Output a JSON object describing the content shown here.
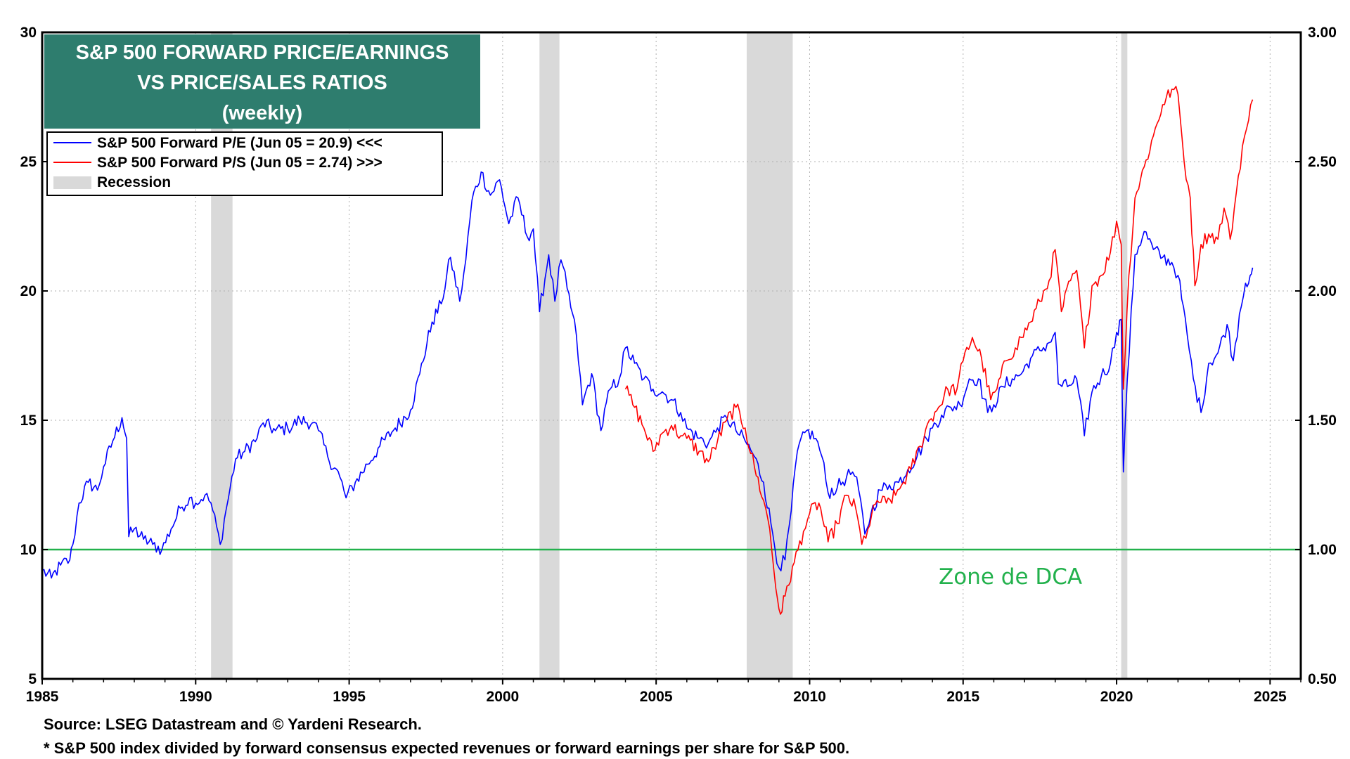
{
  "chart_data": {
    "type": "line",
    "title_lines": [
      "S&P 500 FORWARD PRICE/EARNINGS",
      "VS PRICE/SALES RATIOS",
      "(weekly)"
    ],
    "x_ticks": [
      1985,
      1990,
      1995,
      2000,
      2005,
      2010,
      2015,
      2020,
      2025
    ],
    "xlim": [
      1985,
      2026
    ],
    "y_left": {
      "ticks": [
        5,
        10,
        15,
        20,
        25,
        30
      ],
      "labels": [
        "5",
        "10",
        "15",
        "20",
        "25",
        "30"
      ],
      "ylim": [
        5,
        30
      ]
    },
    "y_right": {
      "ticks": [
        0.5,
        1.0,
        1.5,
        2.0,
        2.5,
        3.0
      ],
      "labels": [
        "0.50",
        "1.00",
        "1.50",
        "2.00",
        "2.50",
        "3.00"
      ],
      "ylim": [
        0.5,
        3.0
      ]
    },
    "grid": true,
    "legend": [
      {
        "label": "S&P 500 Forward P/E (Jun 05 = 20.9) <<<",
        "color": "#0000ff",
        "kind": "line"
      },
      {
        "label": "S&P 500 Forward P/S (Jun 05 = 2.74) >>>",
        "color": "#ff0000",
        "kind": "line"
      },
      {
        "label": "Recession",
        "color": "#d9d9d9",
        "kind": "box"
      }
    ],
    "recessions": [
      [
        1990.5,
        1991.2
      ],
      [
        2001.2,
        2001.85
      ],
      [
        2007.95,
        2009.45
      ],
      [
        2020.15,
        2020.35
      ]
    ],
    "reference_line": {
      "value": 10,
      "color": "#22b14c",
      "label": "Zone de DCA"
    },
    "series": [
      {
        "name": "S&P 500 Forward P/E",
        "axis": "left",
        "color": "#0000ff",
        "points": [
          [
            1985.0,
            9.2
          ],
          [
            1985.3,
            8.9
          ],
          [
            1985.6,
            9.4
          ],
          [
            1985.9,
            9.6
          ],
          [
            1986.0,
            10.2
          ],
          [
            1986.2,
            11.8
          ],
          [
            1986.5,
            12.6
          ],
          [
            1986.8,
            12.3
          ],
          [
            1987.0,
            13.2
          ],
          [
            1987.3,
            14.2
          ],
          [
            1987.6,
            15.1
          ],
          [
            1987.75,
            14.3
          ],
          [
            1987.82,
            10.5
          ],
          [
            1988.0,
            10.8
          ],
          [
            1988.3,
            10.4
          ],
          [
            1988.6,
            10.2
          ],
          [
            1988.9,
            10.0
          ],
          [
            1989.2,
            10.8
          ],
          [
            1989.5,
            11.6
          ],
          [
            1989.8,
            12.0
          ],
          [
            1990.0,
            11.8
          ],
          [
            1990.3,
            12.1
          ],
          [
            1990.5,
            11.8
          ],
          [
            1990.8,
            10.2
          ],
          [
            1991.0,
            11.6
          ],
          [
            1991.3,
            13.5
          ],
          [
            1991.6,
            13.8
          ],
          [
            1992.0,
            14.3
          ],
          [
            1992.2,
            14.9
          ],
          [
            1992.6,
            14.6
          ],
          [
            1993.0,
            14.7
          ],
          [
            1993.4,
            15.0
          ],
          [
            1993.8,
            14.9
          ],
          [
            1994.0,
            14.6
          ],
          [
            1994.3,
            13.6
          ],
          [
            1994.7,
            12.8
          ],
          [
            1994.9,
            12.0
          ],
          [
            1995.2,
            12.6
          ],
          [
            1995.6,
            13.3
          ],
          [
            1996.0,
            14.0
          ],
          [
            1996.5,
            14.7
          ],
          [
            1997.0,
            15.4
          ],
          [
            1997.3,
            16.8
          ],
          [
            1997.7,
            18.8
          ],
          [
            1998.0,
            19.5
          ],
          [
            1998.3,
            21.3
          ],
          [
            1998.6,
            19.6
          ],
          [
            1998.8,
            21.2
          ],
          [
            1999.0,
            23.5
          ],
          [
            1999.3,
            24.6
          ],
          [
            1999.6,
            23.7
          ],
          [
            1999.9,
            24.3
          ],
          [
            2000.2,
            22.6
          ],
          [
            2000.5,
            23.6
          ],
          [
            2000.8,
            22.1
          ],
          [
            2001.0,
            22.4
          ],
          [
            2001.2,
            19.2
          ],
          [
            2001.5,
            21.4
          ],
          [
            2001.7,
            19.6
          ],
          [
            2001.9,
            21.2
          ],
          [
            2002.1,
            20.1
          ],
          [
            2002.4,
            18.3
          ],
          [
            2002.6,
            15.6
          ],
          [
            2002.9,
            16.8
          ],
          [
            2003.2,
            14.6
          ],
          [
            2003.5,
            16.2
          ],
          [
            2003.8,
            16.6
          ],
          [
            2004.0,
            17.8
          ],
          [
            2004.3,
            17.2
          ],
          [
            2004.6,
            16.6
          ],
          [
            2004.9,
            16.2
          ],
          [
            2005.2,
            16.1
          ],
          [
            2005.5,
            15.8
          ],
          [
            2005.8,
            15.3
          ],
          [
            2006.0,
            14.7
          ],
          [
            2006.4,
            14.3
          ],
          [
            2006.7,
            14.1
          ],
          [
            2007.0,
            14.7
          ],
          [
            2007.3,
            15.1
          ],
          [
            2007.6,
            14.6
          ],
          [
            2007.9,
            14.2
          ],
          [
            2008.2,
            13.6
          ],
          [
            2008.5,
            12.6
          ],
          [
            2008.8,
            10.6
          ],
          [
            2009.0,
            9.3
          ],
          [
            2009.2,
            9.6
          ],
          [
            2009.4,
            11.5
          ],
          [
            2009.6,
            13.8
          ],
          [
            2009.9,
            14.6
          ],
          [
            2010.2,
            14.3
          ],
          [
            2010.4,
            13.6
          ],
          [
            2010.6,
            12.2
          ],
          [
            2010.9,
            12.4
          ],
          [
            2011.2,
            12.8
          ],
          [
            2011.4,
            13.0
          ],
          [
            2011.6,
            12.3
          ],
          [
            2011.8,
            10.6
          ],
          [
            2012.0,
            11.4
          ],
          [
            2012.3,
            12.3
          ],
          [
            2012.6,
            12.5
          ],
          [
            2012.9,
            12.6
          ],
          [
            2013.2,
            13.1
          ],
          [
            2013.5,
            13.6
          ],
          [
            2013.8,
            14.3
          ],
          [
            2014.0,
            14.7
          ],
          [
            2014.3,
            15.2
          ],
          [
            2014.6,
            15.5
          ],
          [
            2014.9,
            15.6
          ],
          [
            2015.2,
            16.6
          ],
          [
            2015.5,
            16.6
          ],
          [
            2015.8,
            15.3
          ],
          [
            2016.0,
            15.6
          ],
          [
            2016.3,
            16.3
          ],
          [
            2016.6,
            16.6
          ],
          [
            2016.9,
            16.8
          ],
          [
            2017.2,
            17.4
          ],
          [
            2017.5,
            17.7
          ],
          [
            2017.8,
            18.0
          ],
          [
            2018.0,
            18.4
          ],
          [
            2018.1,
            16.4
          ],
          [
            2018.4,
            16.3
          ],
          [
            2018.7,
            16.6
          ],
          [
            2018.95,
            14.4
          ],
          [
            2019.2,
            16.1
          ],
          [
            2019.5,
            16.7
          ],
          [
            2019.8,
            17.2
          ],
          [
            2020.0,
            18.4
          ],
          [
            2020.15,
            18.9
          ],
          [
            2020.22,
            13.0
          ],
          [
            2020.35,
            16.6
          ],
          [
            2020.6,
            21.4
          ],
          [
            2020.9,
            22.3
          ],
          [
            2021.2,
            21.6
          ],
          [
            2021.5,
            21.3
          ],
          [
            2021.8,
            21.1
          ],
          [
            2022.0,
            20.6
          ],
          [
            2022.3,
            18.3
          ],
          [
            2022.5,
            16.6
          ],
          [
            2022.75,
            15.3
          ],
          [
            2023.0,
            17.2
          ],
          [
            2023.3,
            17.6
          ],
          [
            2023.6,
            18.7
          ],
          [
            2023.8,
            17.3
          ],
          [
            2024.0,
            19.1
          ],
          [
            2024.2,
            20.3
          ],
          [
            2024.35,
            20.6
          ],
          [
            2024.43,
            20.9
          ]
        ]
      },
      {
        "name": "S&P 500 Forward P/S",
        "axis": "right",
        "color": "#ff0000",
        "points": [
          [
            2004.0,
            1.62
          ],
          [
            2004.3,
            1.55
          ],
          [
            2004.6,
            1.47
          ],
          [
            2004.9,
            1.38
          ],
          [
            2005.2,
            1.45
          ],
          [
            2005.5,
            1.48
          ],
          [
            2005.8,
            1.44
          ],
          [
            2006.0,
            1.43
          ],
          [
            2006.4,
            1.38
          ],
          [
            2006.7,
            1.34
          ],
          [
            2007.0,
            1.42
          ],
          [
            2007.3,
            1.5
          ],
          [
            2007.6,
            1.55
          ],
          [
            2007.9,
            1.47
          ],
          [
            2008.2,
            1.32
          ],
          [
            2008.5,
            1.19
          ],
          [
            2008.7,
            1.08
          ],
          [
            2008.9,
            0.85
          ],
          [
            2009.05,
            0.75
          ],
          [
            2009.2,
            0.82
          ],
          [
            2009.5,
            0.95
          ],
          [
            2009.8,
            1.07
          ],
          [
            2010.0,
            1.14
          ],
          [
            2010.3,
            1.18
          ],
          [
            2010.6,
            1.03
          ],
          [
            2010.9,
            1.1
          ],
          [
            2011.2,
            1.21
          ],
          [
            2011.5,
            1.16
          ],
          [
            2011.7,
            1.02
          ],
          [
            2011.9,
            1.08
          ],
          [
            2012.2,
            1.19
          ],
          [
            2012.5,
            1.18
          ],
          [
            2012.8,
            1.21
          ],
          [
            2013.0,
            1.25
          ],
          [
            2013.3,
            1.31
          ],
          [
            2013.6,
            1.4
          ],
          [
            2013.9,
            1.5
          ],
          [
            2014.2,
            1.55
          ],
          [
            2014.5,
            1.62
          ],
          [
            2014.8,
            1.62
          ],
          [
            2015.0,
            1.73
          ],
          [
            2015.3,
            1.82
          ],
          [
            2015.6,
            1.74
          ],
          [
            2015.9,
            1.58
          ],
          [
            2016.1,
            1.62
          ],
          [
            2016.4,
            1.73
          ],
          [
            2016.7,
            1.78
          ],
          [
            2016.9,
            1.82
          ],
          [
            2017.2,
            1.88
          ],
          [
            2017.5,
            1.96
          ],
          [
            2017.8,
            2.04
          ],
          [
            2018.0,
            2.16
          ],
          [
            2018.2,
            1.92
          ],
          [
            2018.5,
            2.04
          ],
          [
            2018.7,
            2.08
          ],
          [
            2018.95,
            1.78
          ],
          [
            2019.2,
            2.02
          ],
          [
            2019.5,
            2.06
          ],
          [
            2019.8,
            2.15
          ],
          [
            2020.0,
            2.27
          ],
          [
            2020.15,
            2.18
          ],
          [
            2020.22,
            1.62
          ],
          [
            2020.4,
            2.06
          ],
          [
            2020.6,
            2.36
          ],
          [
            2020.9,
            2.48
          ],
          [
            2021.2,
            2.6
          ],
          [
            2021.5,
            2.72
          ],
          [
            2021.8,
            2.78
          ],
          [
            2022.0,
            2.76
          ],
          [
            2022.2,
            2.5
          ],
          [
            2022.4,
            2.36
          ],
          [
            2022.55,
            2.02
          ],
          [
            2022.75,
            2.18
          ],
          [
            2023.0,
            2.22
          ],
          [
            2023.3,
            2.2
          ],
          [
            2023.5,
            2.32
          ],
          [
            2023.7,
            2.2
          ],
          [
            2023.9,
            2.38
          ],
          [
            2024.1,
            2.56
          ],
          [
            2024.3,
            2.66
          ],
          [
            2024.43,
            2.74
          ]
        ]
      }
    ],
    "notes": [
      "Source: LSEG Datastream and © Yardeni Research.",
      "* S&P 500 index divided by forward consensus expected revenues or forward earnings per share for S&P 500."
    ]
  }
}
